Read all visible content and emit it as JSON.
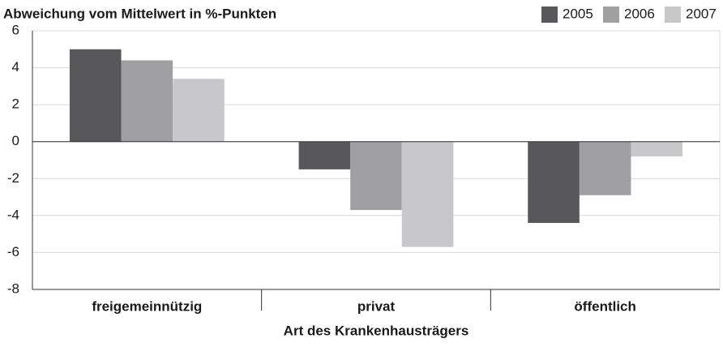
{
  "chart_data": {
    "type": "bar",
    "title": "Abweichung vom Mittelwert in %-Punkten",
    "x_label": "Art des Krankenhausträgers",
    "categories": [
      "freigemeinnützig",
      "privat",
      "öffentlich"
    ],
    "series": [
      {
        "name": "2005",
        "color": "#58585a",
        "values": [
          5.0,
          -1.5,
          -4.4
        ]
      },
      {
        "name": "2006",
        "color": "#a0a0a2",
        "values": [
          4.4,
          -3.7,
          -2.9
        ]
      },
      {
        "name": "2007",
        "color": "#c8c8ca",
        "values": [
          3.4,
          -5.7,
          -0.8
        ]
      }
    ],
    "ylim": [
      -8,
      6
    ],
    "yticks": [
      6,
      4,
      2,
      0,
      -2,
      -4,
      -6,
      -8
    ],
    "grid": true,
    "legend": "top-right"
  }
}
